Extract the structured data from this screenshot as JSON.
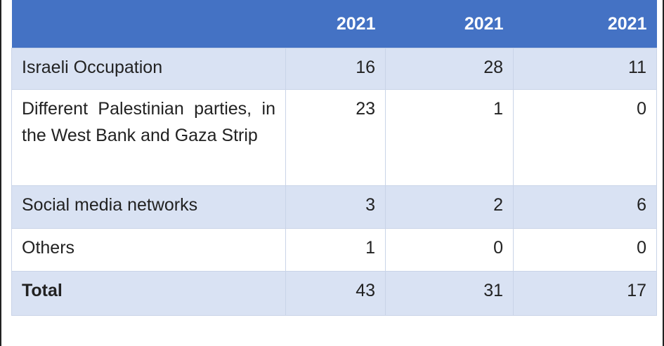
{
  "table": {
    "headers": [
      "",
      "2021",
      "2021",
      "2021"
    ],
    "rows": [
      {
        "label": "Israeli Occupation",
        "values": [
          "16",
          "28",
          "11"
        ]
      },
      {
        "label": "Different Palestinian parties, in the West Bank and Gaza Strip",
        "values": [
          "23",
          "1",
          "0"
        ]
      },
      {
        "label": "Social media networks",
        "values": [
          "3",
          "2",
          "6"
        ]
      },
      {
        "label": "Others",
        "values": [
          "1",
          "0",
          "0"
        ]
      },
      {
        "label": "Total",
        "values": [
          "43",
          "31",
          "17"
        ]
      }
    ]
  },
  "colors": {
    "header_background": "#4472c4",
    "header_text": "#ffffff",
    "band_shade": "#d9e2f3",
    "band_plain": "#ffffff"
  }
}
